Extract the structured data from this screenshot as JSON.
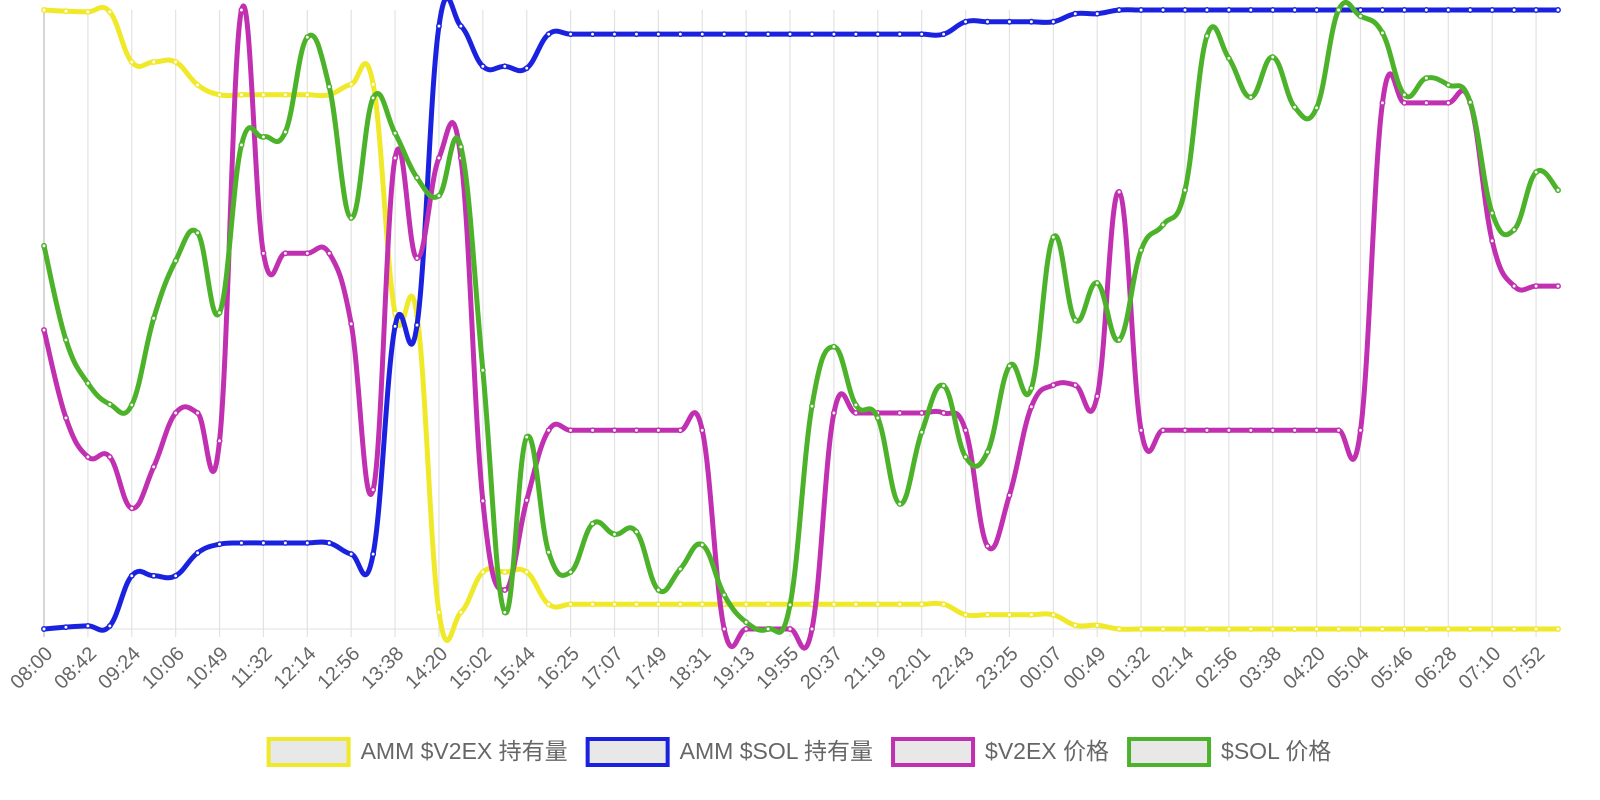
{
  "chart_data": {
    "type": "line",
    "categories": [
      "08:00",
      null,
      "08:42",
      null,
      "09:24",
      null,
      "10:06",
      null,
      "10:49",
      null,
      "11:32",
      null,
      "12:14",
      null,
      "12:56",
      null,
      "13:38",
      null,
      "14:20",
      null,
      "15:02",
      null,
      "15:44",
      null,
      "16:25",
      null,
      "17:07",
      null,
      "17:49",
      null,
      "18:31",
      null,
      "19:13",
      null,
      "19:55",
      null,
      "20:37",
      null,
      "21:19",
      null,
      "22:01",
      null,
      "22:43",
      null,
      "23:25",
      null,
      "00:07",
      null,
      "00:49",
      null,
      "01:32",
      null,
      "02:14",
      null,
      "02:56",
      null,
      "03:38",
      null,
      "04:20",
      null,
      "05:04",
      null,
      "05:46",
      null,
      "06:28",
      null,
      "07:10",
      null,
      "07:52",
      null
    ],
    "ylim": [
      0,
      100
    ],
    "grid": true,
    "legend": "bottom",
    "series": [
      {
        "name": "AMM $V2EX 持有量",
        "color": "#f0e92a",
        "values": [
          100,
          99.8,
          99.7,
          99.7,
          91.6,
          91.6,
          91.6,
          87.9,
          86.3,
          86.3,
          86.3,
          86.3,
          86.3,
          86.3,
          88,
          88,
          51,
          50.7,
          2.7,
          2.7,
          9.2,
          9.2,
          9.2,
          4,
          4,
          4,
          4,
          4,
          4,
          4,
          4,
          4,
          4,
          4,
          4,
          4,
          4,
          4,
          4,
          4,
          4,
          4,
          2.3,
          2.3,
          2.3,
          2.3,
          2.3,
          0.6,
          0.6,
          0,
          0,
          0,
          0,
          0,
          0,
          0,
          0,
          0,
          0,
          0,
          0,
          0,
          0,
          0,
          0,
          0,
          0,
          0,
          0,
          0
        ]
      },
      {
        "name": "AMM $SOL 持有量",
        "color": "#1a22e0",
        "values": [
          0,
          0.3,
          0.5,
          0.5,
          8.6,
          8.6,
          8.6,
          12.3,
          13.7,
          13.9,
          13.9,
          13.9,
          13.9,
          13.9,
          12.1,
          12.1,
          48.9,
          49.1,
          97.4,
          97.4,
          90.9,
          90.9,
          90.6,
          96.1,
          96.1,
          96.1,
          96.1,
          96.1,
          96.1,
          96.1,
          96.1,
          96.1,
          96.1,
          96.1,
          96.1,
          96.1,
          96.1,
          96.1,
          96.1,
          96.1,
          96.1,
          96.1,
          98.1,
          98.1,
          98.1,
          98.1,
          98.1,
          99.4,
          99.4,
          100,
          100,
          100,
          100,
          100,
          100,
          100,
          100,
          100,
          100,
          100,
          100,
          100,
          100,
          100,
          100,
          100,
          100,
          100,
          100,
          100
        ]
      },
      {
        "name": "$V2EX 价格",
        "color": "#c030b0",
        "values": [
          48.3,
          34.1,
          27.8,
          27.8,
          19.5,
          26.2,
          34.9,
          34.9,
          30.4,
          100,
          60.7,
          60.7,
          60.7,
          60.7,
          49.3,
          22.5,
          76.1,
          59.9,
          76.1,
          76.1,
          20.7,
          6.3,
          20.8,
          32.1,
          32.1,
          32.1,
          32.1,
          32.1,
          32.1,
          32.1,
          32.1,
          0,
          0,
          0,
          0,
          0,
          34.9,
          34.9,
          34.9,
          34.9,
          34.9,
          34.9,
          32.1,
          13.4,
          21.6,
          35.9,
          39.4,
          39.4,
          37.6,
          70.6,
          32.1,
          32.1,
          32.1,
          32.1,
          32.1,
          32.1,
          32.1,
          32.1,
          32.1,
          32.1,
          32.1,
          85,
          85,
          85,
          85,
          85,
          62.7,
          55.4,
          55.4,
          55.4
        ]
      },
      {
        "name": "$SOL 价格",
        "color": "#4cb22a",
        "values": [
          61.9,
          46.7,
          39.7,
          36.3,
          36.2,
          50.2,
          59.5,
          64,
          51.1,
          78.2,
          79.5,
          80.3,
          95.6,
          87.6,
          66.4,
          85.8,
          80.1,
          72.9,
          70,
          77.9,
          41.8,
          2.7,
          31,
          12.4,
          9.2,
          17,
          15.3,
          15.7,
          6.3,
          9.7,
          13.6,
          5.5,
          1.1,
          0,
          3.9,
          36,
          45.6,
          36.2,
          34.1,
          20.2,
          31.8,
          39.3,
          27.8,
          28.6,
          42.5,
          38.9,
          63.3,
          49.9,
          55.9,
          46.7,
          61.2,
          65.3,
          70.9,
          95.8,
          92.2,
          85.9,
          92.4,
          84.3,
          84.2,
          100,
          99,
          96.3,
          86.3,
          89,
          87.9,
          85.1,
          67.2,
          64.5,
          73.8,
          70.9
        ]
      }
    ]
  }
}
